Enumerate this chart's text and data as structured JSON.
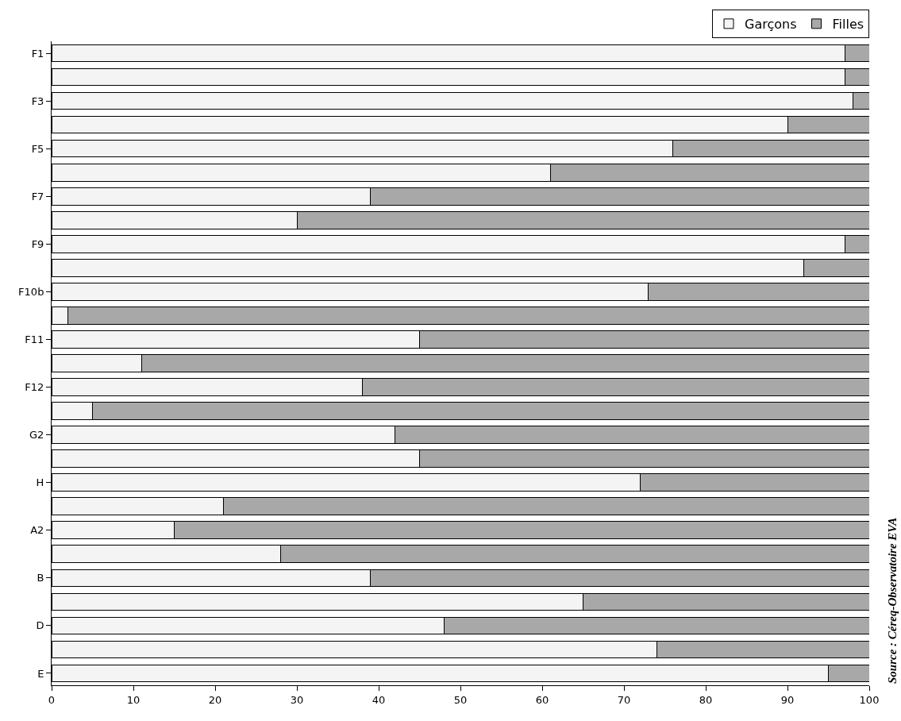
{
  "chart_data": {
    "type": "bar",
    "orientation": "horizontal",
    "stacked": true,
    "categories": [
      "F1",
      null,
      "F3",
      null,
      "F5",
      null,
      "F7",
      null,
      "F9",
      null,
      "F10b",
      null,
      "F11",
      null,
      "F12",
      null,
      "G2",
      null,
      "H",
      null,
      "A2",
      null,
      "B",
      null,
      "D",
      null,
      "E"
    ],
    "series": [
      {
        "name": "Garçons",
        "color": "#f4f4f4",
        "values": [
          97,
          97,
          98,
          90,
          76,
          61,
          39,
          30,
          97,
          92,
          73,
          2,
          45,
          11,
          38,
          5,
          42,
          45,
          72,
          21,
          15,
          28,
          39,
          65,
          48,
          74,
          95
        ]
      },
      {
        "name": "Filles",
        "color": "#a8a8a8",
        "values": [
          3,
          3,
          2,
          10,
          24,
          39,
          61,
          70,
          3,
          8,
          27,
          98,
          55,
          89,
          62,
          95,
          58,
          55,
          28,
          79,
          85,
          72,
          61,
          35,
          52,
          26,
          5
        ]
      }
    ],
    "xlim": [
      0,
      100
    ],
    "xticks": [
      0,
      10,
      20,
      30,
      40,
      50,
      60,
      70,
      80,
      90,
      100
    ],
    "grid": false,
    "legend": "top right",
    "annotations": [
      "Source : Céreq-Observatoire EVA"
    ]
  }
}
